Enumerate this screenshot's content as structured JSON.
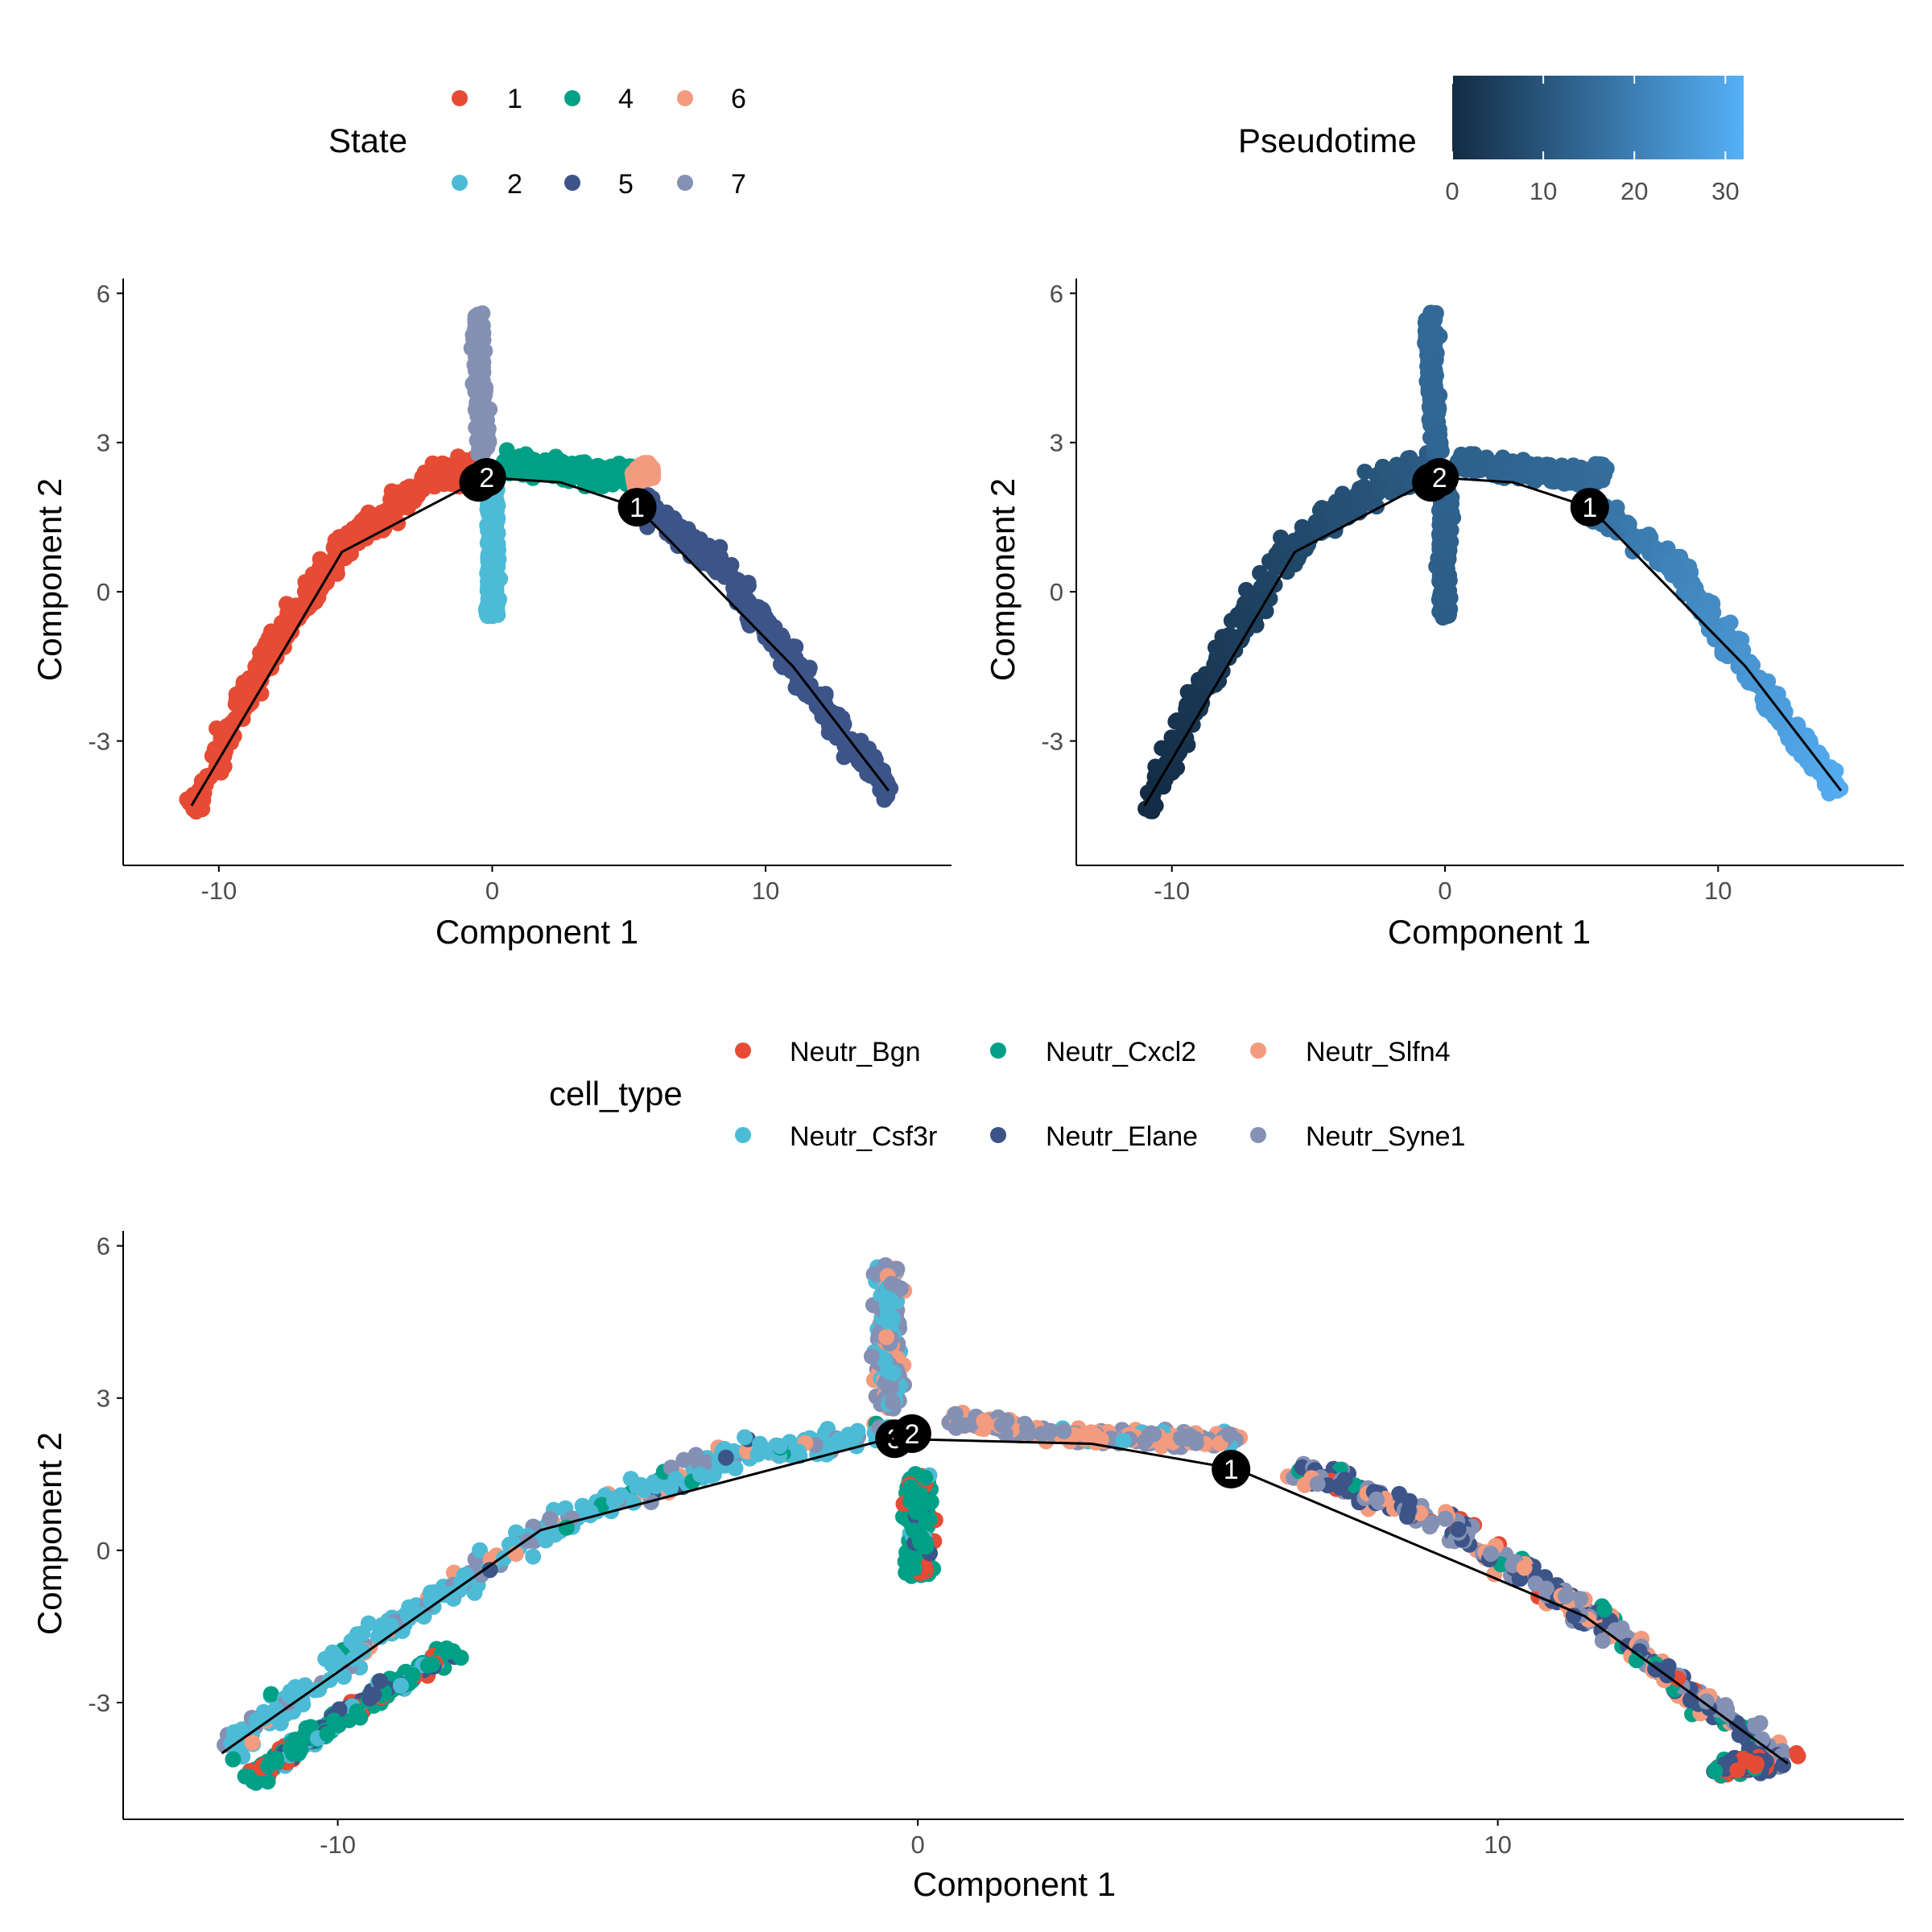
{
  "colors": {
    "state": {
      "1": "#E64B35",
      "2": "#4DBBD5",
      "4": "#00A087",
      "5": "#3C5488",
      "6": "#F39B7F",
      "7": "#8491B4"
    },
    "cell_type": {
      "Neutr_Bgn": "#E64B35",
      "Neutr_Csf3r": "#4DBBD5",
      "Neutr_Cxcl2": "#00A087",
      "Neutr_Elane": "#3C5488",
      "Neutr_Slfn4": "#F39B7F",
      "Neutr_Syne1": "#8491B4"
    },
    "pseudotime_low": "#132B43",
    "pseudotime_high": "#56B1F7",
    "tree_line": "#000000",
    "node_fill": "#000000"
  },
  "chart_data": [
    {
      "type": "scatter",
      "color_by": "State",
      "xlabel": "Component 1",
      "ylabel": "Component 2",
      "xlim": [
        -13.5,
        16.8
      ],
      "ylim": [
        -5.5,
        6.2
      ],
      "x_ticks": [
        -10,
        0,
        10
      ],
      "y_ticks": [
        -3,
        0,
        3,
        6
      ],
      "legend": {
        "title": "State",
        "position": "top",
        "entries": [
          {
            "label": "1",
            "key": "1"
          },
          {
            "label": "4",
            "key": "4"
          },
          {
            "label": "6",
            "key": "6"
          },
          {
            "label": "2",
            "key": "2"
          },
          {
            "label": "5",
            "key": "5"
          },
          {
            "label": "7",
            "key": "7"
          }
        ]
      },
      "branches": [
        {
          "state": "1",
          "points": [
            [
              -11.0,
              -4.5
            ],
            [
              -8.5,
              -1.5
            ],
            [
              -5.5,
              0.9
            ],
            [
              -2.5,
              2.2
            ],
            [
              -0.3,
              2.55
            ]
          ],
          "width": 0.75
        },
        {
          "state": "4",
          "points": [
            [
              0.5,
              2.6
            ],
            [
              2.5,
              2.45
            ],
            [
              4.2,
              2.35
            ],
            [
              5.2,
              2.35
            ]
          ],
          "width": 0.45
        },
        {
          "state": "6",
          "points": [
            [
              5.2,
              2.2
            ],
            [
              5.8,
              2.5
            ]
          ],
          "width": 0.35
        },
        {
          "state": "5",
          "points": [
            [
              5.5,
              1.7
            ],
            [
              8.5,
              0.5
            ],
            [
              11.0,
              -1.5
            ],
            [
              13.0,
              -3.0
            ],
            [
              14.5,
              -4.0
            ]
          ],
          "width": 0.65
        },
        {
          "state": "2",
          "points": [
            [
              0.0,
              -0.5
            ],
            [
              0.0,
              1.2
            ],
            [
              0.0,
              2.0
            ]
          ],
          "width": 0.45
        },
        {
          "state": "7",
          "points": [
            [
              -0.3,
              2.8
            ],
            [
              -0.4,
              3.8
            ],
            [
              -0.5,
              4.6
            ],
            [
              -0.5,
              5.6
            ]
          ],
          "width": 0.4
        }
      ],
      "trajectory": [
        [
          -11.0,
          -4.3
        ],
        [
          -5.5,
          0.8
        ],
        [
          -0.3,
          2.3
        ],
        [
          2.5,
          2.2
        ],
        [
          5.3,
          1.7
        ],
        [
          11.0,
          -1.5
        ],
        [
          14.5,
          -4.0
        ]
      ],
      "nodes": [
        {
          "label": "3",
          "x": -0.5,
          "y": 2.2
        },
        {
          "label": "2",
          "x": -0.2,
          "y": 2.3
        },
        {
          "label": "1",
          "x": 5.3,
          "y": 1.7
        }
      ]
    },
    {
      "type": "scatter",
      "color_by": "Pseudotime",
      "xlabel": "Component 1",
      "ylabel": "Component 2",
      "xlim": [
        -13.5,
        16.8
      ],
      "ylim": [
        -5.5,
        6.2
      ],
      "x_ticks": [
        -10,
        0,
        10
      ],
      "y_ticks": [
        -3,
        0,
        3,
        6
      ],
      "legend": {
        "title": "Pseudotime",
        "position": "top",
        "type": "colorbar",
        "range": [
          0,
          32
        ],
        "ticks": [
          0,
          10,
          20,
          30
        ]
      },
      "branches": [
        {
          "pt": [
            0,
            12
          ],
          "points": [
            [
              -11.0,
              -4.5
            ],
            [
              -8.5,
              -1.5
            ],
            [
              -5.5,
              0.9
            ],
            [
              -2.5,
              2.2
            ],
            [
              -0.3,
              2.55
            ]
          ],
          "width": 0.75
        },
        {
          "pt": [
            13,
            15
          ],
          "points": [
            [
              0.5,
              2.6
            ],
            [
              2.5,
              2.45
            ],
            [
              4.2,
              2.35
            ],
            [
              5.2,
              2.35
            ]
          ],
          "width": 0.45
        },
        {
          "pt": [
            15,
            16
          ],
          "points": [
            [
              5.2,
              2.2
            ],
            [
              5.8,
              2.5
            ]
          ],
          "width": 0.35
        },
        {
          "pt": [
            17,
            31
          ],
          "points": [
            [
              5.5,
              1.7
            ],
            [
              8.5,
              0.5
            ],
            [
              11.0,
              -1.5
            ],
            [
              13.0,
              -3.0
            ],
            [
              14.5,
              -4.0
            ]
          ],
          "width": 0.65
        },
        {
          "pt": [
            12,
            13
          ],
          "points": [
            [
              0.0,
              -0.5
            ],
            [
              0.0,
              1.2
            ],
            [
              0.0,
              2.0
            ]
          ],
          "width": 0.45
        },
        {
          "pt": [
            14,
            15
          ],
          "points": [
            [
              -0.3,
              2.8
            ],
            [
              -0.4,
              3.8
            ],
            [
              -0.5,
              4.6
            ],
            [
              -0.5,
              5.6
            ]
          ],
          "width": 0.4
        }
      ],
      "trajectory": [
        [
          -11.0,
          -4.3
        ],
        [
          -5.5,
          0.8
        ],
        [
          -0.3,
          2.3
        ],
        [
          2.5,
          2.2
        ],
        [
          5.3,
          1.7
        ],
        [
          11.0,
          -1.5
        ],
        [
          14.5,
          -4.0
        ]
      ],
      "nodes": [
        {
          "label": "3",
          "x": -0.5,
          "y": 2.2
        },
        {
          "label": "2",
          "x": -0.2,
          "y": 2.3
        },
        {
          "label": "1",
          "x": 5.3,
          "y": 1.7
        }
      ]
    },
    {
      "type": "scatter",
      "color_by": "cell_type",
      "xlabel": "Component 1",
      "ylabel": "Component 2",
      "xlim": [
        -13.7,
        17.0
      ],
      "ylim": [
        -5.3,
        6.2
      ],
      "x_ticks": [
        -10,
        0,
        10
      ],
      "y_ticks": [
        -3,
        0,
        3,
        6
      ],
      "legend": {
        "title": "cell_type",
        "position": "top",
        "entries": [
          {
            "label": "Neutr_Bgn",
            "key": "Neutr_Bgn"
          },
          {
            "label": "Neutr_Cxcl2",
            "key": "Neutr_Cxcl2"
          },
          {
            "label": "Neutr_Slfn4",
            "key": "Neutr_Slfn4"
          },
          {
            "label": "Neutr_Csf3r",
            "key": "Neutr_Csf3r"
          },
          {
            "label": "Neutr_Elane",
            "key": "Neutr_Elane"
          },
          {
            "label": "Neutr_Syne1",
            "key": "Neutr_Syne1"
          }
        ]
      },
      "branches": [
        {
          "mix": {
            "Neutr_Csf3r": 0.72,
            "Neutr_Syne1": 0.13,
            "Neutr_Slfn4": 0.08,
            "Neutr_Cxcl2": 0.05,
            "Neutr_Elane": 0.02
          },
          "points": [
            [
              -12.0,
              -4.0
            ],
            [
              -9.5,
              -1.8
            ],
            [
              -6.5,
              0.4
            ],
            [
              -3.0,
              1.9
            ],
            [
              -0.5,
              2.3
            ]
          ],
          "width": 0.6
        },
        {
          "mix": {
            "Neutr_Cxcl2": 0.6,
            "Neutr_Csf3r": 0.15,
            "Neutr_Elane": 0.12,
            "Neutr_Bgn": 0.13
          },
          "points": [
            [
              -11.5,
              -4.5
            ],
            [
              -10.0,
              -3.3
            ],
            [
              -8.0,
              -2.0
            ]
          ],
          "width": 0.35
        },
        {
          "mix": {
            "Neutr_Syne1": 0.55,
            "Neutr_Slfn4": 0.35,
            "Neutr_Csf3r": 0.1
          },
          "points": [
            [
              0.6,
              2.6
            ],
            [
              3.0,
              2.2
            ],
            [
              5.5,
              2.2
            ]
          ],
          "width": 0.35
        },
        {
          "mix": {
            "Neutr_Syne1": 0.4,
            "Neutr_Elane": 0.28,
            "Neutr_Slfn4": 0.2,
            "Neutr_Bgn": 0.06,
            "Neutr_Cxcl2": 0.06
          },
          "points": [
            [
              6.5,
              1.6
            ],
            [
              9.0,
              0.6
            ],
            [
              11.5,
              -1.2
            ],
            [
              13.5,
              -3.0
            ],
            [
              15.0,
              -4.2
            ]
          ],
          "width": 0.55
        },
        {
          "mix": {
            "Neutr_Cxcl2": 0.75,
            "Neutr_Bgn": 0.14,
            "Neutr_Elane": 0.06,
            "Neutr_Csf3r": 0.05
          },
          "points": [
            [
              0.0,
              -0.5
            ],
            [
              0.0,
              0.6
            ],
            [
              0.0,
              1.5
            ]
          ],
          "width": 0.45
        },
        {
          "mix": {
            "Neutr_Syne1": 0.55,
            "Neutr_Csf3r": 0.3,
            "Neutr_Slfn4": 0.15
          },
          "points": [
            [
              -0.5,
              2.8
            ],
            [
              -0.5,
              3.8
            ],
            [
              -0.5,
              4.6
            ],
            [
              -0.5,
              5.6
            ]
          ],
          "width": 0.4
        },
        {
          "mix": {
            "Neutr_Elane": 0.45,
            "Neutr_Bgn": 0.35,
            "Neutr_Cxcl2": 0.2
          },
          "points": [
            [
              13.8,
              -4.3
            ],
            [
              14.6,
              -4.2
            ]
          ],
          "width": 0.3
        }
      ],
      "trajectory": [
        [
          -12.0,
          -4.0
        ],
        [
          -6.5,
          0.4
        ],
        [
          -0.5,
          2.2
        ],
        [
          3.0,
          2.1
        ],
        [
          5.5,
          1.6
        ],
        [
          11.5,
          -1.3
        ],
        [
          15.0,
          -4.2
        ]
      ],
      "nodes": [
        {
          "label": "3",
          "x": -0.4,
          "y": 2.2
        },
        {
          "label": "2",
          "x": -0.1,
          "y": 2.3
        },
        {
          "label": "1",
          "x": 5.4,
          "y": 1.6
        }
      ]
    }
  ]
}
